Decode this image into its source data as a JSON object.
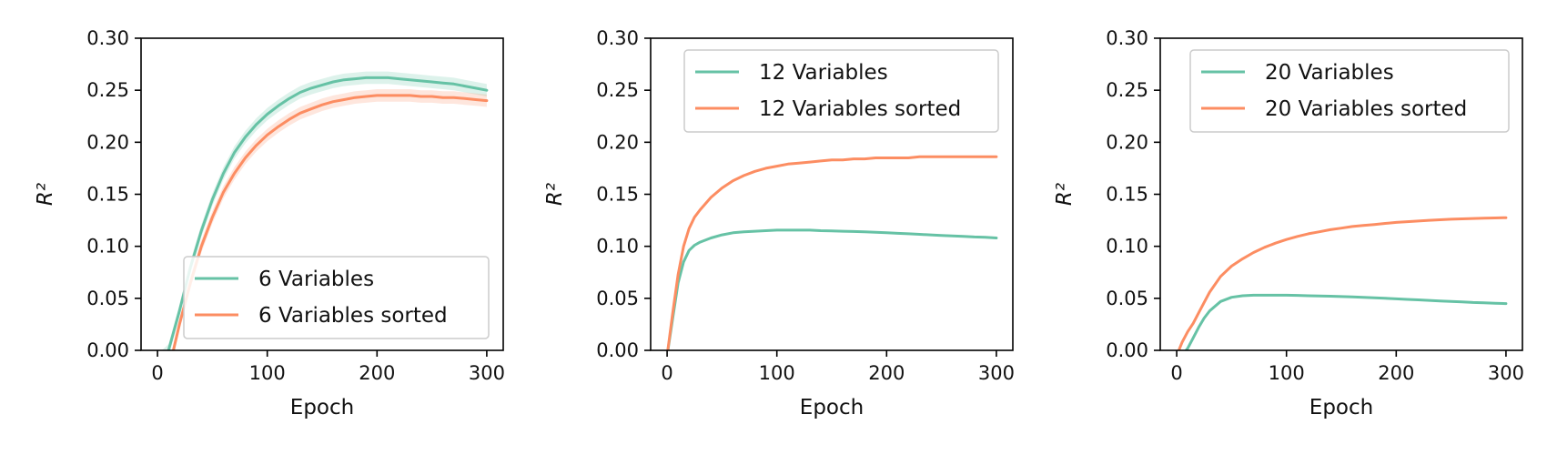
{
  "colors": {
    "series_1": "#66c2a5",
    "series_2": "#fc8d62",
    "axis": "#000000",
    "legend_border": "#cccccc",
    "background": "#ffffff"
  },
  "chart_data": [
    {
      "type": "line",
      "title": "",
      "xlabel": "Epoch",
      "ylabel": "R²",
      "xlim": [
        -15,
        315
      ],
      "ylim": [
        0,
        0.3
      ],
      "xticks": [
        0,
        100,
        200,
        300
      ],
      "yticks": [
        0.0,
        0.05,
        0.1,
        0.15,
        0.2,
        0.25,
        0.3
      ],
      "xtick_labels": [
        "0",
        "100",
        "200",
        "300"
      ],
      "ytick_labels": [
        "0.00",
        "0.05",
        "0.10",
        "0.15",
        "0.20",
        "0.25",
        "0.30"
      ],
      "grid": false,
      "legend_position": "lower-right",
      "x": [
        0,
        10,
        20,
        30,
        40,
        50,
        60,
        70,
        80,
        90,
        100,
        110,
        120,
        130,
        140,
        150,
        160,
        170,
        180,
        190,
        200,
        210,
        220,
        230,
        240,
        250,
        260,
        270,
        280,
        290,
        300
      ],
      "series": [
        {
          "name": "6 Variables",
          "values": [
            -0.01,
            0.0,
            0.038,
            0.08,
            0.115,
            0.145,
            0.17,
            0.19,
            0.205,
            0.217,
            0.227,
            0.235,
            0.242,
            0.248,
            0.252,
            0.255,
            0.258,
            0.26,
            0.261,
            0.262,
            0.262,
            0.262,
            0.261,
            0.26,
            0.259,
            0.258,
            0.257,
            0.256,
            0.254,
            0.252,
            0.25
          ],
          "band": 0.006
        },
        {
          "name": "6 Variables sorted",
          "values": [
            -0.03,
            -0.02,
            0.025,
            0.065,
            0.1,
            0.128,
            0.152,
            0.17,
            0.185,
            0.197,
            0.207,
            0.215,
            0.222,
            0.228,
            0.232,
            0.236,
            0.239,
            0.241,
            0.243,
            0.244,
            0.245,
            0.245,
            0.245,
            0.245,
            0.244,
            0.244,
            0.243,
            0.243,
            0.242,
            0.241,
            0.24
          ],
          "band": 0.006
        }
      ]
    },
    {
      "type": "line",
      "title": "",
      "xlabel": "Epoch",
      "ylabel": "R²",
      "xlim": [
        -15,
        315
      ],
      "ylim": [
        0,
        0.3
      ],
      "xticks": [
        0,
        100,
        200,
        300
      ],
      "yticks": [
        0.0,
        0.05,
        0.1,
        0.15,
        0.2,
        0.25,
        0.3
      ],
      "xtick_labels": [
        "0",
        "100",
        "200",
        "300"
      ],
      "ytick_labels": [
        "0.00",
        "0.05",
        "0.10",
        "0.15",
        "0.20",
        "0.25",
        "0.30"
      ],
      "grid": false,
      "legend_position": "upper-right",
      "x": [
        0,
        5,
        10,
        15,
        20,
        25,
        30,
        40,
        50,
        60,
        70,
        80,
        90,
        100,
        110,
        120,
        130,
        140,
        150,
        160,
        170,
        180,
        190,
        200,
        210,
        220,
        230,
        240,
        250,
        260,
        270,
        280,
        290,
        300
      ],
      "series": [
        {
          "name": "12 Variables",
          "values": [
            -0.005,
            0.03,
            0.065,
            0.085,
            0.096,
            0.101,
            0.104,
            0.108,
            0.111,
            0.113,
            0.114,
            0.1145,
            0.115,
            0.1155,
            0.1155,
            0.1155,
            0.1155,
            0.115,
            0.1148,
            0.1145,
            0.1142,
            0.114,
            0.1135,
            0.113,
            0.1125,
            0.112,
            0.1115,
            0.111,
            0.1105,
            0.11,
            0.1095,
            0.109,
            0.1087,
            0.108
          ]
        },
        {
          "name": "12 Variables sorted",
          "values": [
            -0.005,
            0.035,
            0.073,
            0.1,
            0.117,
            0.128,
            0.135,
            0.147,
            0.156,
            0.163,
            0.168,
            0.172,
            0.175,
            0.177,
            0.179,
            0.18,
            0.181,
            0.182,
            0.183,
            0.183,
            0.184,
            0.184,
            0.185,
            0.185,
            0.185,
            0.185,
            0.186,
            0.186,
            0.186,
            0.186,
            0.186,
            0.186,
            0.186,
            0.186
          ]
        }
      ]
    },
    {
      "type": "line",
      "title": "",
      "xlabel": "Epoch",
      "ylabel": "R²",
      "xlim": [
        -15,
        315
      ],
      "ylim": [
        0,
        0.3
      ],
      "xticks": [
        0,
        100,
        200,
        300
      ],
      "yticks": [
        0.0,
        0.05,
        0.1,
        0.15,
        0.2,
        0.25,
        0.3
      ],
      "xtick_labels": [
        "0",
        "100",
        "200",
        "300"
      ],
      "ytick_labels": [
        "0.00",
        "0.05",
        "0.10",
        "0.15",
        "0.20",
        "0.25",
        "0.30"
      ],
      "grid": false,
      "legend_position": "upper-right",
      "x": [
        0,
        5,
        10,
        15,
        20,
        25,
        30,
        40,
        50,
        60,
        70,
        80,
        90,
        100,
        110,
        120,
        130,
        140,
        150,
        160,
        170,
        180,
        190,
        200,
        210,
        220,
        230,
        240,
        250,
        260,
        270,
        280,
        290,
        300
      ],
      "series": [
        {
          "name": "20 Variables",
          "values": [
            -0.01,
            -0.005,
            0.002,
            0.012,
            0.022,
            0.031,
            0.038,
            0.047,
            0.051,
            0.0525,
            0.053,
            0.053,
            0.053,
            0.053,
            0.0528,
            0.0525,
            0.0522,
            0.052,
            0.0517,
            0.0513,
            0.051,
            0.0505,
            0.05,
            0.0495,
            0.049,
            0.0485,
            0.048,
            0.0475,
            0.047,
            0.0465,
            0.046,
            0.0457,
            0.0453,
            0.045
          ]
        },
        {
          "name": "20 Variables sorted",
          "values": [
            -0.005,
            0.008,
            0.018,
            0.026,
            0.036,
            0.046,
            0.056,
            0.071,
            0.081,
            0.088,
            0.094,
            0.099,
            0.103,
            0.1065,
            0.1095,
            0.112,
            0.114,
            0.116,
            0.1175,
            0.119,
            0.12,
            0.121,
            0.122,
            0.123,
            0.1237,
            0.1243,
            0.125,
            0.1255,
            0.126,
            0.1264,
            0.1267,
            0.127,
            0.1273,
            0.1275
          ]
        }
      ]
    }
  ]
}
